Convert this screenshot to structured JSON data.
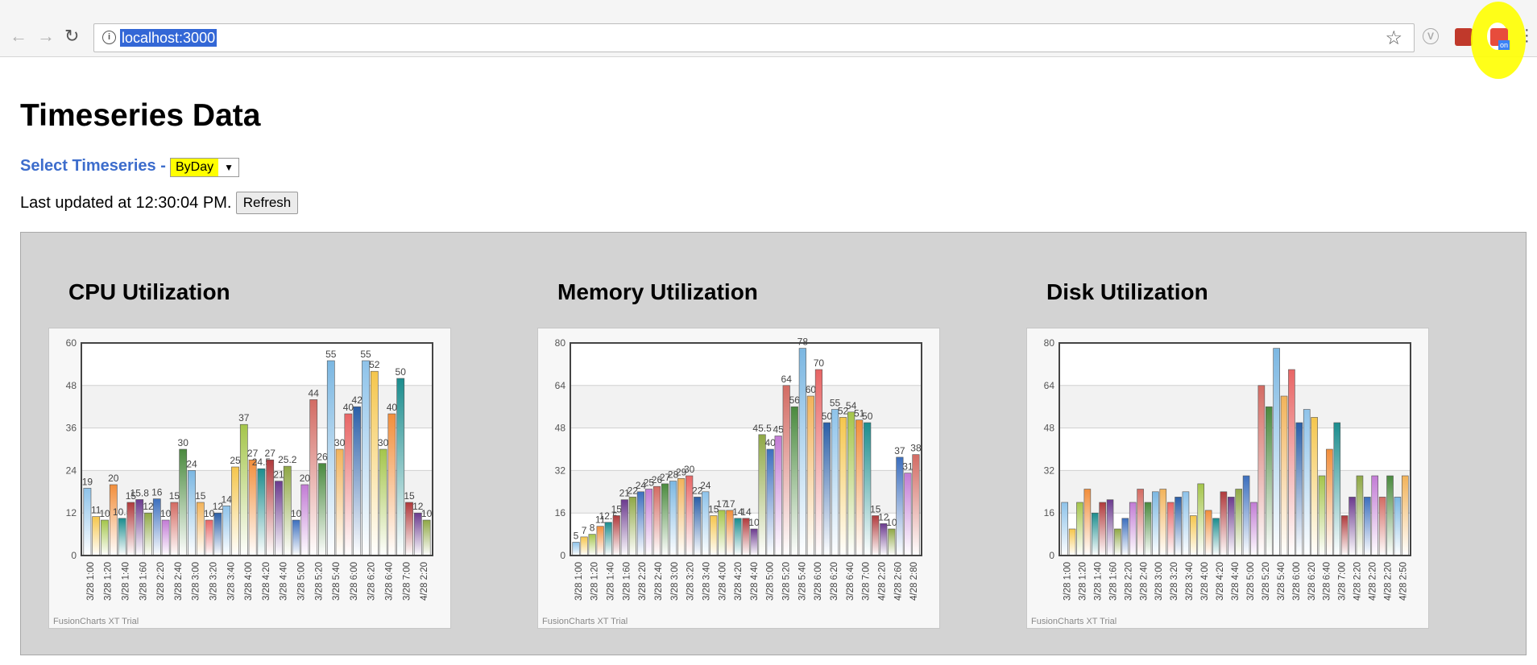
{
  "browser": {
    "url": "localhost:3000",
    "extension_badge": "on"
  },
  "page": {
    "title": "Timeseries Data",
    "select_label": "Select Timeseries -",
    "select_value": "ByDay",
    "last_updated": "Last updated at 12:30:04 PM.",
    "refresh_label": "Refresh"
  },
  "colors": {
    "palette": [
      "#8ec3ea",
      "#f5c64c",
      "#a4c54a",
      "#f28e3b",
      "#1b8d8e",
      "#b03a3c",
      "#6b3a8e",
      "#8fa845",
      "#3c6fbe",
      "#c27bd5",
      "#d36b63",
      "#4a8a3e",
      "#7bb7e2",
      "#f2b35a",
      "#e86565",
      "#2a5fa8"
    ],
    "highlight": "#ffff00",
    "label_blue": "#3d6dcc"
  },
  "chart_data": [
    {
      "type": "bar",
      "title": "CPU Utilization",
      "ylim": [
        0,
        60
      ],
      "yticks": [
        0,
        12,
        24,
        36,
        48,
        60
      ],
      "watermark": "FusionCharts XT Trial",
      "tick_labels": [
        "3/28 1:00",
        "3/28 1:20",
        "3/28 1:40",
        "3/28 1:60",
        "3/28 2:20",
        "3/28 2:40",
        "3/28 3:00",
        "3/28 3:20",
        "3/28 3:40",
        "3/28 4:00",
        "3/28 4:20",
        "3/28 4:40",
        "3/28 5:00",
        "3/28 5:20",
        "3/28 5:40",
        "3/28 6:00",
        "3/28 6:20",
        "3/28 6:40",
        "3/28 7:00",
        "4/28 2:20"
      ],
      "values": [
        19,
        11,
        10,
        20,
        10.5,
        15,
        15.8,
        12,
        16,
        10,
        15,
        30,
        24,
        15,
        10,
        12,
        14,
        25,
        37,
        27,
        24.5,
        27,
        21,
        25.2,
        10,
        20,
        44,
        26,
        55,
        30,
        40,
        42,
        55,
        52,
        30,
        40,
        50,
        15,
        12,
        10
      ],
      "value_labels": [
        "19",
        "11",
        "10",
        "20",
        "10.5",
        "15",
        "15.8",
        "12",
        "16",
        "10",
        "15",
        "30",
        "24",
        "15",
        "10",
        "12",
        "14",
        "25",
        "37",
        "27",
        "24.5",
        "27",
        "21",
        "25.2",
        "10",
        "20",
        "44",
        "26",
        "55",
        "30",
        "40",
        "42",
        "55",
        "52",
        "30",
        "40",
        "50",
        "15",
        "12",
        "10"
      ]
    },
    {
      "type": "bar",
      "title": "Memory Utilization",
      "ylim": [
        0,
        80
      ],
      "yticks": [
        0,
        16,
        32,
        48,
        64,
        80
      ],
      "watermark": "FusionCharts XT Trial",
      "tick_labels": [
        "3/28 1:00",
        "3/28 1:20",
        "3/28 1:40",
        "3/28 1:60",
        "3/28 2:20",
        "3/28 2:40",
        "3/28 3:00",
        "3/28 3:20",
        "3/28 3:40",
        "3/28 4:00",
        "3/28 4:20",
        "3/28 4:40",
        "3/28 5:00",
        "3/28 5:20",
        "3/28 5:40",
        "3/28 6:00",
        "3/28 6:20",
        "3/28 6:40",
        "3/28 7:00",
        "4/28 2:20",
        "4/28 2:60",
        "4/28 2:80"
      ],
      "values": [
        5,
        7,
        8,
        11,
        12.5,
        15,
        21,
        22,
        24,
        25,
        26,
        27,
        28,
        29,
        30,
        22,
        24,
        15,
        17,
        17,
        14,
        14,
        10,
        45.5,
        40,
        45,
        64,
        56,
        78,
        60,
        70,
        50,
        55,
        52,
        54,
        51,
        50,
        15,
        12,
        10,
        37,
        31,
        38
      ],
      "value_labels": [
        "5",
        "7",
        "8",
        "11",
        "12.5",
        "15",
        "21",
        "22",
        "24",
        "25",
        "26",
        "27",
        "28",
        "29",
        "30",
        "22",
        "24",
        "15",
        "17",
        "17",
        "14",
        "14",
        "10",
        "45.5",
        "40",
        "45",
        "64",
        "56",
        "78",
        "60",
        "70",
        "50",
        "55",
        "52",
        "54",
        "51",
        "50",
        "15",
        "12",
        "10",
        "37",
        "31",
        "38"
      ]
    },
    {
      "type": "bar",
      "title": "Disk Utilization",
      "ylim": [
        0,
        80
      ],
      "yticks": [
        0,
        16,
        32,
        48,
        64,
        80
      ],
      "watermark": "FusionCharts XT Trial",
      "tick_labels": [
        "3/28 1:00",
        "3/28 1:20",
        "3/28 1:40",
        "3/28 1:60",
        "3/28 2:20",
        "3/28 2:40",
        "3/28 3:00",
        "3/28 3:20",
        "3/28 3:40",
        "3/28 4:00",
        "3/28 4:20",
        "3/28 4:40",
        "3/28 5:00",
        "3/28 5:20",
        "3/28 5:40",
        "3/28 6:00",
        "3/28 6:20",
        "3/28 6:40",
        "3/28 7:00",
        "4/28 2:20",
        "4/28 2:20",
        "4/28 2:20",
        "4/28 2:50"
      ],
      "values": [
        20,
        10,
        20,
        25,
        16,
        20,
        21,
        10,
        14,
        20,
        25,
        20,
        24,
        25,
        20,
        22,
        24,
        15,
        27,
        17,
        14,
        24,
        22,
        25,
        30,
        20,
        64,
        56,
        78,
        60,
        70,
        50,
        55,
        52,
        30,
        40,
        50,
        15,
        22,
        30,
        22,
        30,
        22,
        30,
        22,
        30
      ],
      "value_labels": []
    }
  ]
}
